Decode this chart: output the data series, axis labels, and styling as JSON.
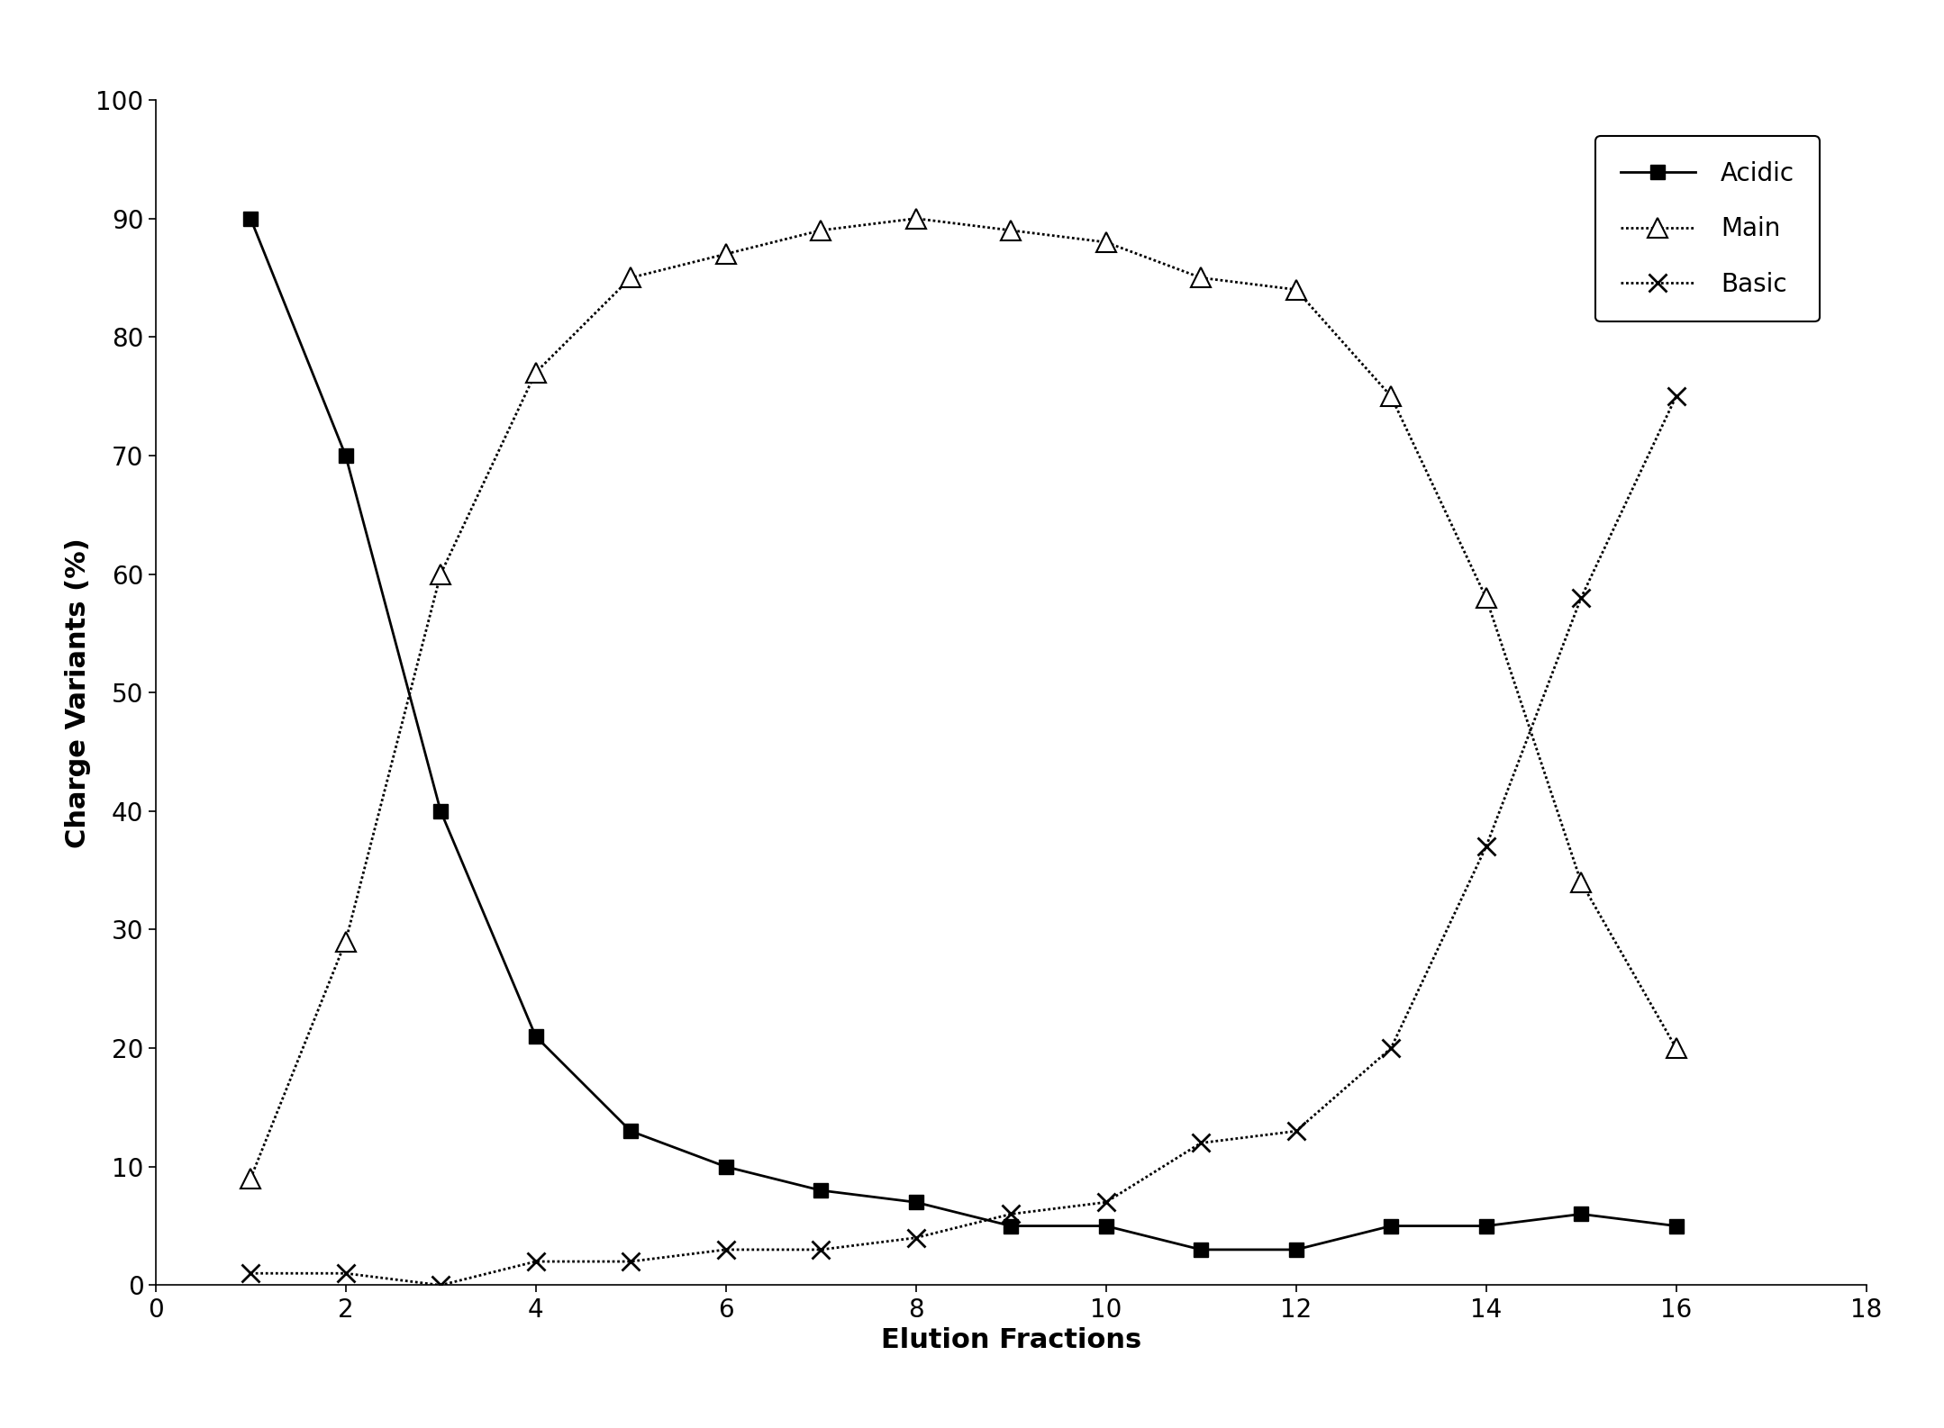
{
  "acidic_x": [
    1,
    2,
    3,
    4,
    5,
    6,
    7,
    8,
    9,
    10,
    11,
    12,
    13,
    14,
    15,
    16
  ],
  "acidic_y": [
    90,
    70,
    40,
    21,
    13,
    10,
    8,
    7,
    5,
    5,
    3,
    3,
    5,
    5,
    6,
    5
  ],
  "main_x": [
    1,
    2,
    3,
    4,
    5,
    6,
    7,
    8,
    9,
    10,
    11,
    12,
    13,
    14,
    15,
    16
  ],
  "main_y": [
    9,
    29,
    60,
    77,
    85,
    87,
    89,
    90,
    89,
    88,
    85,
    84,
    75,
    58,
    34,
    20
  ],
  "basic_x": [
    1,
    2,
    3,
    4,
    5,
    6,
    7,
    8,
    9,
    10,
    11,
    12,
    13,
    14,
    15,
    16
  ],
  "basic_y": [
    1,
    1,
    0,
    2,
    2,
    3,
    3,
    4,
    6,
    7,
    12,
    13,
    20,
    37,
    58,
    75
  ],
  "xlabel": "Elution Fractions",
  "ylabel": "Charge Variants (%)",
  "xlim": [
    0,
    18
  ],
  "ylim": [
    0,
    100
  ],
  "xticks": [
    0,
    2,
    4,
    6,
    8,
    10,
    12,
    14,
    16,
    18
  ],
  "yticks": [
    0,
    10,
    20,
    30,
    40,
    50,
    60,
    70,
    80,
    90,
    100
  ],
  "legend_labels": [
    "Acidic",
    "Main",
    "Basic"
  ],
  "line_color": "#000000",
  "background_color": "#ffffff",
  "label_fontsize": 22,
  "tick_fontsize": 20,
  "legend_fontsize": 20,
  "figwidth": 21.58,
  "figheight": 15.86,
  "dpi": 100
}
